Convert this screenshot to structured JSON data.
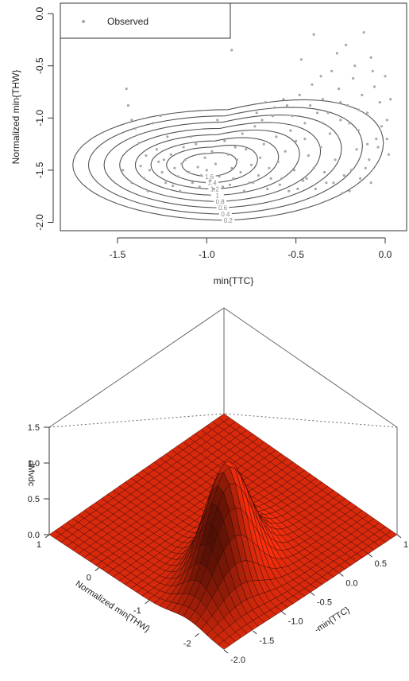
{
  "colors": {
    "points": "#a8a8a8",
    "contour": "#555555",
    "axis": "#333333",
    "surface": "#d9290c",
    "surface_dark": "#5a0d04",
    "wire": "#2a0a05"
  },
  "chart_data": [
    {
      "type": "scatter",
      "subtype": "scatter with density contours",
      "title": "",
      "xlabel": "min{TTC}",
      "ylabel": "Normalized min{THW}",
      "xlim": [
        -1.82,
        0.12
      ],
      "ylim": [
        -2.08,
        0.1
      ],
      "x_ticks": [
        "-1.5",
        "-1.0",
        "-0.5",
        "0.0"
      ],
      "x_tick_values": [
        -1.5,
        -1.0,
        -0.5,
        0.0
      ],
      "y_ticks": [
        "0.0",
        "-0.5",
        "-1.0",
        "-1.5",
        "-2.0"
      ],
      "y_tick_values": [
        0.0,
        -0.5,
        -1.0,
        -1.5,
        -2.0
      ],
      "legend": {
        "position": "top-left",
        "entries": [
          "Observed"
        ]
      },
      "contour_labels": [
        "0.2",
        "0.4",
        "0.6",
        "0.8",
        "1",
        "1.2",
        "1.4",
        "1.6"
      ],
      "density_center": {
        "x": -1.0,
        "y": -1.45
      },
      "observed_points": [
        [
          -1.45,
          -0.72
        ],
        [
          -1.44,
          -0.88
        ],
        [
          -1.42,
          -1.02
        ],
        [
          -1.4,
          -1.1
        ],
        [
          -1.38,
          -1.24
        ],
        [
          -1.37,
          -1.46
        ],
        [
          -1.35,
          -1.58
        ],
        [
          -1.33,
          -1.7
        ],
        [
          -1.3,
          -1.05
        ],
        [
          -1.28,
          -1.3
        ],
        [
          -1.27,
          -1.42
        ],
        [
          -1.25,
          -1.52
        ],
        [
          -1.23,
          -1.62
        ],
        [
          -1.22,
          -1.18
        ],
        [
          -1.2,
          -1.35
        ],
        [
          -1.18,
          -1.48
        ],
        [
          -1.16,
          -1.56
        ],
        [
          -1.15,
          -1.7
        ],
        [
          -1.13,
          -1.28
        ],
        [
          -1.12,
          -1.4
        ],
        [
          -1.1,
          -1.52
        ],
        [
          -1.08,
          -1.62
        ],
        [
          -1.06,
          -1.25
        ],
        [
          -1.05,
          -1.47
        ],
        [
          -1.03,
          -1.55
        ],
        [
          -1.01,
          -1.38
        ],
        [
          -1.0,
          -1.5
        ],
        [
          -0.98,
          -1.6
        ],
        [
          -0.97,
          -1.32
        ],
        [
          -0.95,
          -1.44
        ],
        [
          -0.93,
          -1.56
        ],
        [
          -0.91,
          -1.66
        ],
        [
          -0.9,
          -1.22
        ],
        [
          -0.88,
          -1.35
        ],
        [
          -0.86,
          -1.48
        ],
        [
          -0.85,
          -1.58
        ],
        [
          -0.83,
          -1.4
        ],
        [
          -0.81,
          -1.52
        ],
        [
          -0.8,
          -1.15
        ],
        [
          -0.78,
          -1.3
        ],
        [
          -0.76,
          -1.62
        ],
        [
          -0.75,
          -1.45
        ],
        [
          -0.73,
          -1.08
        ],
        [
          -0.71,
          -1.55
        ],
        [
          -0.7,
          -1.38
        ],
        [
          -0.68,
          -1.25
        ],
        [
          -0.66,
          -1.68
        ],
        [
          -0.65,
          -1.48
        ],
        [
          -0.63,
          -0.98
        ],
        [
          -0.61,
          -1.18
        ],
        [
          -0.6,
          -1.42
        ],
        [
          -0.58,
          -1.58
        ],
        [
          -0.56,
          -1.32
        ],
        [
          -0.55,
          -0.88
        ],
        [
          -0.53,
          -1.12
        ],
        [
          -0.51,
          -1.5
        ],
        [
          -0.5,
          -1.22
        ],
        [
          -0.48,
          -0.78
        ],
        [
          -0.46,
          -1.6
        ],
        [
          -0.45,
          -1.05
        ],
        [
          -0.43,
          -1.36
        ],
        [
          -0.41,
          -0.68
        ],
        [
          -0.4,
          -1.48
        ],
        [
          -0.38,
          -0.95
        ],
        [
          -0.36,
          -1.28
        ],
        [
          -0.35,
          -0.82
        ],
        [
          -0.33,
          -1.62
        ],
        [
          -0.31,
          -1.15
        ],
        [
          -0.3,
          -0.55
        ],
        [
          -0.28,
          -1.4
        ],
        [
          -0.26,
          -0.72
        ],
        [
          -0.25,
          -1.02
        ],
        [
          -0.23,
          -1.55
        ],
        [
          -0.21,
          -0.88
        ],
        [
          -0.2,
          -1.7
        ],
        [
          -0.18,
          -0.62
        ],
        [
          -0.16,
          -1.3
        ],
        [
          -0.15,
          -1.12
        ],
        [
          -0.13,
          -0.78
        ],
        [
          -0.11,
          -1.48
        ],
        [
          -0.1,
          -0.95
        ],
        [
          -0.08,
          -1.62
        ],
        [
          -0.06,
          -0.7
        ],
        [
          -0.05,
          -1.2
        ],
        [
          -0.03,
          -0.85
        ],
        [
          -0.02,
          -1.08
        ],
        [
          0.0,
          -0.6
        ],
        [
          0.02,
          -1.35
        ],
        [
          -0.86,
          -0.35
        ],
        [
          -0.47,
          -0.44
        ],
        [
          -0.4,
          -0.2
        ],
        [
          -0.36,
          -0.6
        ],
        [
          -0.22,
          -0.3
        ],
        [
          -0.27,
          -0.38
        ],
        [
          -0.12,
          -0.18
        ],
        [
          -0.08,
          -0.42
        ],
        [
          0.03,
          -0.82
        ],
        [
          0.01,
          -1.02
        ],
        [
          -0.04,
          -1.28
        ],
        [
          -1.47,
          -1.5
        ],
        [
          -1.42,
          -1.62
        ],
        [
          -1.34,
          -1.36
        ],
        [
          -1.26,
          -0.98
        ],
        [
          -1.19,
          -1.65
        ],
        [
          -1.09,
          -1.18
        ],
        [
          -0.94,
          -1.02
        ],
        [
          -0.87,
          -1.64
        ],
        [
          -0.79,
          -1.7
        ],
        [
          -0.69,
          -1.02
        ],
        [
          -0.59,
          -1.64
        ],
        [
          -0.49,
          -1.68
        ],
        [
          -0.39,
          -1.68
        ],
        [
          -0.29,
          -1.62
        ],
        [
          -0.19,
          -1.5
        ],
        [
          -0.09,
          -1.4
        ],
        [
          -0.14,
          -1.58
        ],
        [
          -0.24,
          -1.72
        ],
        [
          -0.34,
          -1.52
        ],
        [
          -0.44,
          -1.58
        ],
        [
          -0.54,
          -1.7
        ],
        [
          -0.64,
          -1.58
        ],
        [
          -0.74,
          -1.62
        ],
        [
          -0.84,
          -1.28
        ],
        [
          -0.96,
          -1.68
        ],
        [
          -1.04,
          -1.66
        ],
        [
          -1.14,
          -1.44
        ],
        [
          -1.24,
          -1.4
        ],
        [
          -1.32,
          -1.5
        ],
        [
          -0.17,
          -0.5
        ],
        [
          -0.32,
          -0.95
        ],
        [
          -0.42,
          -0.88
        ],
        [
          -0.52,
          -0.98
        ],
        [
          -0.57,
          -0.82
        ],
        [
          -0.62,
          -0.9
        ],
        [
          -0.67,
          -0.85
        ],
        [
          -0.72,
          -0.95
        ],
        [
          -0.2,
          -1.05
        ],
        [
          -0.1,
          -1.25
        ],
        [
          -0.07,
          -0.55
        ],
        [
          0.01,
          -1.2
        ],
        [
          -0.15,
          -0.92
        ],
        [
          -0.25,
          -0.85
        ],
        [
          -0.35,
          -1.05
        ],
        [
          -0.45,
          -1.2
        ]
      ]
    },
    {
      "type": "surface3d",
      "title": "",
      "xlabel": "Normalized min{THW}",
      "ylabel": "-min{TTC}",
      "zlabel": "dMvdc",
      "x_ticks": [
        "1",
        "0",
        "-1",
        "-2"
      ],
      "x_tick_values": [
        1,
        0,
        -1,
        -2
      ],
      "y_ticks": [
        "1.0",
        "0.5",
        "0.0",
        "-0.5",
        "-1.0",
        "-1.5",
        "-2.0"
      ],
      "y_tick_values": [
        1.0,
        0.5,
        0.0,
        -0.5,
        -1.0,
        -1.5,
        -2.0
      ],
      "z_ticks": [
        "0.0",
        "0.5",
        "1.0",
        "1.5"
      ],
      "z_tick_values": [
        0.0,
        0.5,
        1.0,
        1.5
      ],
      "xlim": [
        -2.5,
        1.5
      ],
      "ylim": [
        -2.0,
        1.0
      ],
      "zlim": [
        0.0,
        1.5
      ],
      "grid_size": 31,
      "peak": {
        "x": -1.4,
        "y": -1.0,
        "z": 1.55
      }
    }
  ]
}
